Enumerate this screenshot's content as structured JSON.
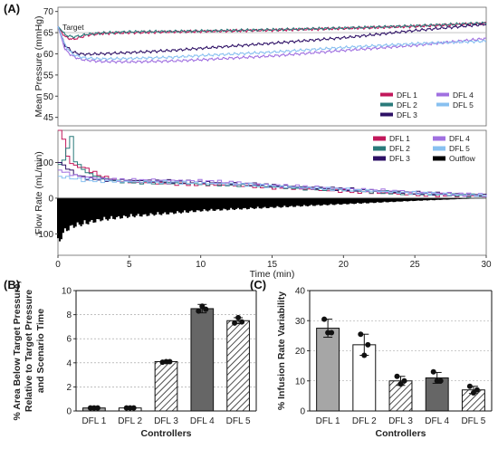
{
  "panels": {
    "a": "(A)",
    "b": "(B)",
    "c": "(C)"
  },
  "colors": {
    "DFL 1": "#c2185b",
    "DFL 2": "#2a7a7a",
    "DFL 3": "#2e1166",
    "DFL 4": "#a070e0",
    "DFL 5": "#88c0f0",
    "Outflow": "#000000",
    "bar_gray": "#a6a6a6",
    "bar_dark": "#666666"
  },
  "chart_data": [
    {
      "id": "pressure",
      "type": "line",
      "ylabel": "Mean Pressure (mmHg)",
      "xlim": [
        0,
        30
      ],
      "ylim": [
        43,
        71
      ],
      "yticks": [
        45,
        50,
        55,
        60,
        65,
        70
      ],
      "target": {
        "label": "Target",
        "value": 65
      },
      "legend": {
        "placement": "bottom-right",
        "entries": [
          "DFL 1",
          "DFL 4",
          "DFL 2",
          "DFL 5",
          "DFL 3"
        ]
      },
      "series": [
        {
          "name": "DFL 1",
          "x": [
            0,
            0.5,
            1,
            1.5,
            2,
            3,
            5,
            8,
            10,
            15,
            20,
            25,
            30
          ],
          "y": [
            66.5,
            64.0,
            63.4,
            63.8,
            64.4,
            64.8,
            65.0,
            65.2,
            65.3,
            65.6,
            66.0,
            66.5,
            67.2
          ]
        },
        {
          "name": "DFL 2",
          "x": [
            0,
            0.5,
            1,
            1.5,
            2,
            3,
            5,
            8,
            10,
            15,
            20,
            25,
            30
          ],
          "y": [
            66.5,
            64.5,
            64.0,
            64.2,
            64.6,
            64.9,
            65.2,
            65.3,
            65.4,
            65.7,
            66.1,
            66.6,
            67.3
          ]
        },
        {
          "name": "DFL 3",
          "x": [
            0,
            0.5,
            1,
            1.5,
            2,
            3,
            5,
            8,
            10,
            15,
            20,
            25,
            30
          ],
          "y": [
            66.5,
            62.0,
            60.5,
            60.0,
            59.9,
            60.0,
            60.3,
            60.8,
            61.3,
            62.5,
            63.8,
            65.5,
            67.0
          ]
        },
        {
          "name": "DFL 4",
          "x": [
            0,
            0.5,
            1,
            1.5,
            2,
            3,
            5,
            8,
            10,
            15,
            20,
            25,
            30
          ],
          "y": [
            66.5,
            61.0,
            59.5,
            58.8,
            58.5,
            58.2,
            58.1,
            58.3,
            58.6,
            59.5,
            60.8,
            62.0,
            63.6
          ]
        },
        {
          "name": "DFL 5",
          "x": [
            0,
            0.5,
            1,
            1.5,
            2,
            3,
            5,
            8,
            10,
            15,
            20,
            25,
            30
          ],
          "y": [
            66.5,
            62.0,
            60.0,
            59.3,
            59.0,
            58.8,
            58.9,
            59.2,
            59.6,
            60.4,
            61.5,
            62.4,
            63.0
          ]
        }
      ]
    },
    {
      "id": "flow",
      "type": "line",
      "xlabel": "Time (min)",
      "ylabel": "Flow Rate (mL/min)",
      "xlim": [
        0,
        30
      ],
      "xticks": [
        0,
        5,
        10,
        15,
        20,
        25,
        30
      ],
      "ylim": [
        -160,
        190
      ],
      "yticks": [
        -100,
        0,
        100
      ],
      "legend": {
        "placement": "top-right",
        "entries": [
          "DFL 1",
          "DFL 4",
          "DFL 2",
          "DFL 5",
          "DFL 3",
          "Outflow"
        ]
      },
      "series": [
        {
          "name": "DFL 1",
          "x": [
            0,
            0.2,
            0.5,
            0.8,
            1,
            1.5,
            2,
            3,
            4,
            5,
            7,
            10,
            13,
            15,
            20,
            25,
            30
          ],
          "y": [
            190,
            180,
            120,
            100,
            90,
            88,
            80,
            60,
            50,
            45,
            42,
            38,
            35,
            30,
            20,
            10,
            5
          ]
        },
        {
          "name": "DFL 2",
          "x": [
            0,
            0.2,
            0.5,
            0.8,
            1,
            1.5,
            2,
            3,
            4,
            5,
            7,
            10,
            13,
            15,
            20,
            25,
            30
          ],
          "y": [
            90,
            100,
            135,
            175,
            110,
            85,
            70,
            55,
            48,
            45,
            43,
            40,
            36,
            32,
            22,
            12,
            6
          ]
        },
        {
          "name": "DFL 3",
          "x": [
            0,
            0.5,
            1,
            1.5,
            2,
            3,
            4,
            5,
            7,
            10,
            13,
            15,
            20,
            25,
            30
          ],
          "y": [
            100,
            85,
            70,
            60,
            55,
            52,
            50,
            50,
            48,
            45,
            40,
            35,
            25,
            15,
            8
          ]
        },
        {
          "name": "DFL 4",
          "x": [
            0,
            0.5,
            1,
            1.5,
            2,
            3,
            4,
            5,
            7,
            10,
            13,
            15,
            20,
            25,
            30
          ],
          "y": [
            80,
            70,
            65,
            60,
            58,
            55,
            52,
            50,
            50,
            48,
            42,
            36,
            26,
            16,
            8
          ]
        },
        {
          "name": "DFL 5",
          "x": [
            0,
            0.5,
            1,
            1.5,
            2,
            3,
            4,
            5,
            7,
            10,
            13,
            15,
            20,
            25,
            30
          ],
          "y": [
            60,
            58,
            55,
            52,
            50,
            48,
            47,
            46,
            45,
            42,
            38,
            33,
            24,
            14,
            7
          ]
        }
      ],
      "outflow": {
        "name": "Outflow",
        "x": [
          0,
          0.3,
          0.6,
          1,
          2,
          3,
          5,
          8,
          10,
          15,
          20,
          25,
          28,
          30
        ],
        "y": [
          -140,
          -110,
          -95,
          -85,
          -75,
          -65,
          -55,
          -45,
          -38,
          -28,
          -18,
          -8,
          -3,
          0
        ]
      }
    },
    {
      "id": "area",
      "type": "bar",
      "title": "",
      "xlabel": "Controllers",
      "ylabel": "% Area Below Target Pressure, Relative to Target Pressure and Scenario Time",
      "categories": [
        "DFL 1",
        "DFL 2",
        "DFL 3",
        "DFL 4",
        "DFL 5"
      ],
      "values": [
        0.25,
        0.25,
        4.1,
        8.5,
        7.5
      ],
      "errors": [
        0.05,
        0.05,
        0.1,
        0.35,
        0.25
      ],
      "points": [
        [
          0.25,
          0.25,
          0.25
        ],
        [
          0.25,
          0.25,
          0.25
        ],
        [
          4.05,
          4.1,
          4.1
        ],
        [
          8.3,
          8.7,
          8.45
        ],
        [
          7.3,
          7.75,
          7.4
        ]
      ],
      "ylim": [
        0,
        10
      ],
      "yticks": [
        0,
        2,
        4,
        6,
        8,
        10
      ],
      "grid": true
    },
    {
      "id": "variability",
      "type": "bar",
      "title": "",
      "xlabel": "Controllers",
      "ylabel": "% Infusion Rate Variability",
      "categories": [
        "DFL 1",
        "DFL 2",
        "DFL 3",
        "DFL 4",
        "DFL 5"
      ],
      "values": [
        27.5,
        22,
        10,
        11,
        7
      ],
      "errors": [
        3,
        3.5,
        1.5,
        1.8,
        1.2
      ],
      "points": [
        [
          30.5,
          26,
          26
        ],
        [
          25.5,
          18.5,
          22
        ],
        [
          11.5,
          9,
          10
        ],
        [
          13,
          10,
          10
        ],
        [
          8.2,
          6,
          7
        ]
      ],
      "ylim": [
        0,
        40
      ],
      "yticks": [
        0,
        10,
        20,
        30,
        40
      ],
      "grid": true
    }
  ]
}
